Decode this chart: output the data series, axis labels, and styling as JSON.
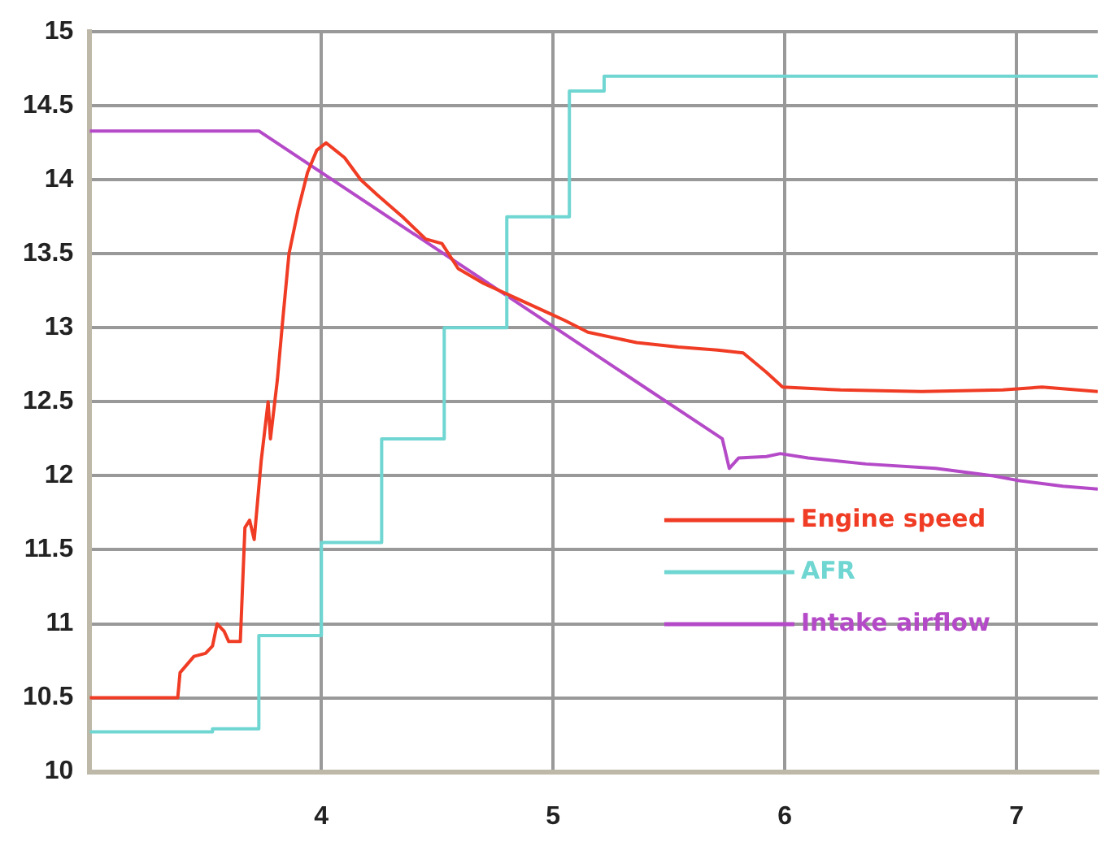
{
  "chart_data": {
    "type": "line",
    "xlim": [
      3,
      7.35
    ],
    "xticks": [
      4,
      5,
      6,
      7
    ],
    "ylim": [
      10,
      15
    ],
    "yticks": [
      10,
      10.5,
      11,
      11.5,
      12,
      12.5,
      13,
      13.5,
      14,
      14.5,
      15
    ],
    "grid": true,
    "legend": "right",
    "marker": "none",
    "line_style": "solid",
    "series": [
      {
        "name": "Engine speed",
        "color": "#f03c24",
        "x": [
          3,
          3.38,
          3.39,
          3.45,
          3.5,
          3.53,
          3.55,
          3.58,
          3.6,
          3.65,
          3.67,
          3.69,
          3.71,
          3.74,
          3.77,
          3.78,
          3.81,
          3.83,
          3.86,
          3.9,
          3.94,
          3.98,
          4.02,
          4.06,
          4.1,
          4.17,
          4.24,
          4.35,
          4.45,
          4.52,
          4.59,
          4.7,
          4.84,
          4.98,
          5.05,
          5.15,
          5.36,
          5.54,
          5.71,
          5.82,
          5.92,
          5.99,
          6.24,
          6.59,
          6.94,
          7.11,
          7.35
        ],
        "values": [
          10.5,
          10.5,
          10.67,
          10.78,
          10.8,
          10.85,
          11.0,
          10.95,
          10.88,
          10.88,
          11.65,
          11.7,
          11.57,
          12.1,
          12.5,
          12.25,
          12.65,
          13.0,
          13.5,
          13.8,
          14.05,
          14.2,
          14.25,
          14.2,
          14.15,
          14.0,
          13.9,
          13.75,
          13.6,
          13.57,
          13.4,
          13.3,
          13.2,
          13.1,
          13.05,
          12.97,
          12.9,
          12.87,
          12.85,
          12.83,
          12.7,
          12.6,
          12.58,
          12.57,
          12.58,
          12.6,
          12.57
        ]
      },
      {
        "name": "AFR",
        "type": "step",
        "color": "#6fd6d2",
        "x": [
          3,
          3.53,
          3.73,
          4.0,
          4.26,
          4.53,
          4.8,
          5.07,
          5.22,
          7.35
        ],
        "values": [
          10.27,
          10.29,
          10.92,
          11.55,
          12.25,
          13.0,
          13.75,
          14.6,
          14.7,
          14.7
        ]
      },
      {
        "name": "Intake airflow",
        "color": "#b54ac8",
        "x": [
          3,
          3.73,
          5.73,
          5.76,
          5.8,
          5.92,
          5.98,
          6.1,
          6.35,
          6.65,
          6.9,
          7.0,
          7.2,
          7.35
        ],
        "values": [
          14.33,
          14.33,
          12.25,
          12.05,
          12.12,
          12.13,
          12.15,
          12.12,
          12.08,
          12.05,
          12.0,
          11.97,
          11.93,
          11.91
        ]
      }
    ]
  }
}
